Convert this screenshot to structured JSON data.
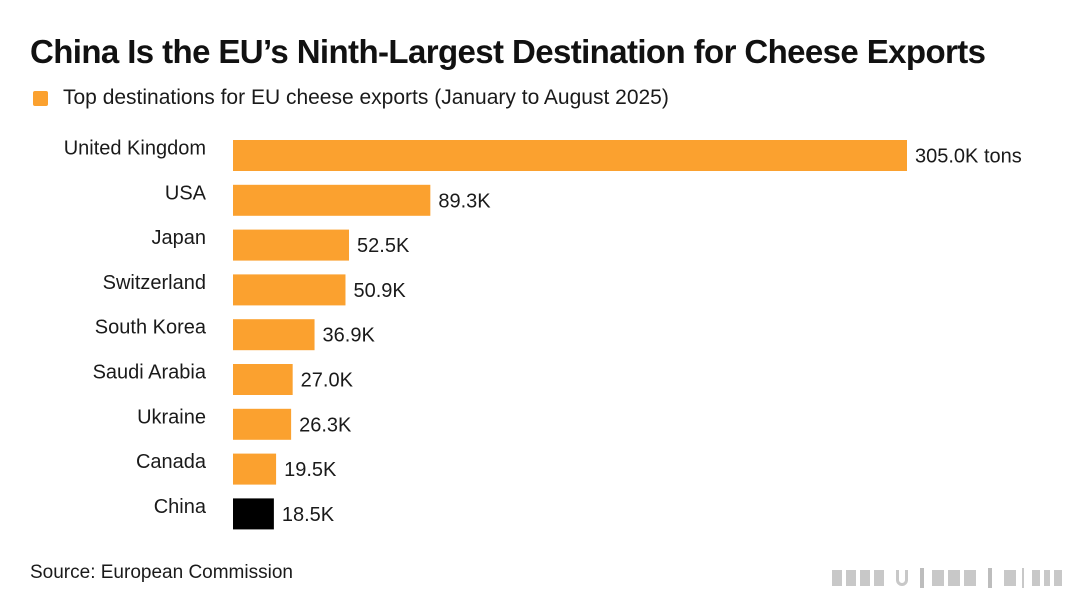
{
  "title": "China Is the EU’s Ninth-Largest Destination for Cheese Exports",
  "legend": {
    "label": "Top destinations for EU cheese exports (January to August 2025)"
  },
  "source": "Source: European Commission",
  "colors": {
    "bar": "#FBA12F",
    "highlight": "#000000",
    "text": "#1a1a1a",
    "watermark": "#c8c8c8"
  },
  "chart_data": {
    "type": "bar",
    "orientation": "horizontal",
    "title": "China Is the EU’s Ninth-Largest Destination for Cheese Exports",
    "xlabel": "",
    "ylabel": "",
    "unit": "thousand tons",
    "xlim": [
      0,
      305
    ],
    "grid": false,
    "legend_position": "top-left",
    "categories": [
      "United Kingdom",
      "USA",
      "Japan",
      "Switzerland",
      "South Korea",
      "Saudi Arabia",
      "Ukraine",
      "Canada",
      "China"
    ],
    "values": [
      305.0,
      89.3,
      52.5,
      50.9,
      36.9,
      27.0,
      26.3,
      19.5,
      18.5
    ],
    "labels": [
      "305.0K tons",
      "89.3K",
      "52.5K",
      "50.9K",
      "36.9K",
      "27.0K",
      "26.3K",
      "19.5K",
      "18.5K"
    ],
    "highlight": [
      "China"
    ],
    "series": [
      {
        "name": "Top destinations for EU cheese exports (January to August 2025)",
        "values": [
          305.0,
          89.3,
          52.5,
          50.9,
          36.9,
          27.0,
          26.3,
          19.5,
          18.5
        ]
      }
    ]
  }
}
